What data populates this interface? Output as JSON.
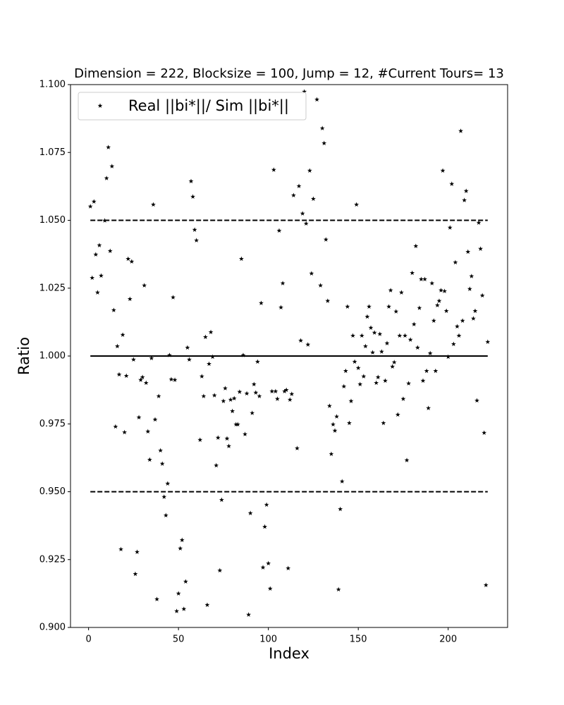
{
  "chart_data": {
    "type": "scatter",
    "title": "Dimension = 222, Blocksize = 100, Jump = 12, #Current Tours= 13",
    "x_label": "Index",
    "y_label": "Ratio",
    "legend": "upper left",
    "series": [
      {
        "name": "Real ||bi*||/ Sim ||bi*||",
        "color": "#000000",
        "marker": "star",
        "x": [
          1,
          2,
          3,
          4,
          5,
          6,
          7,
          9,
          10,
          11,
          12,
          13,
          14,
          15,
          16,
          17,
          18,
          19,
          20,
          21,
          22,
          23,
          24,
          25,
          26,
          27,
          28,
          29,
          30,
          31,
          32,
          33,
          34,
          35,
          36,
          37,
          38,
          39,
          40,
          41,
          42,
          43,
          44,
          45,
          46,
          47,
          48,
          49,
          50,
          51,
          52,
          53,
          54,
          55,
          56,
          57,
          58,
          59,
          60,
          62,
          63,
          64,
          65,
          66,
          67,
          68,
          69,
          70,
          71,
          72,
          73,
          74,
          75,
          76,
          77,
          78,
          79,
          80,
          81,
          82,
          83,
          84,
          85,
          86,
          87,
          88,
          89,
          90,
          91,
          92,
          93,
          94,
          95,
          96,
          97,
          98,
          99,
          100,
          101,
          102,
          103,
          104,
          105,
          106,
          107,
          108,
          109,
          110,
          111,
          112,
          113,
          114,
          116,
          117,
          118,
          119,
          120,
          121,
          122,
          123,
          124,
          125,
          127,
          129,
          130,
          131,
          132,
          133,
          134,
          135,
          136,
          137,
          138,
          139,
          140,
          141,
          142,
          143,
          144,
          145,
          146,
          147,
          148,
          149,
          150,
          151,
          152,
          153,
          154,
          155,
          156,
          157,
          158,
          159,
          160,
          161,
          162,
          163,
          164,
          165,
          166,
          167,
          168,
          169,
          170,
          171,
          172,
          173,
          174,
          175,
          176,
          177,
          178,
          179,
          180,
          181,
          182,
          183,
          184,
          185,
          186,
          187,
          188,
          189,
          190,
          191,
          192,
          193,
          194,
          195,
          196,
          197,
          198,
          199,
          200,
          201,
          202,
          203,
          204,
          205,
          206,
          207,
          208,
          209,
          210,
          211,
          212,
          213,
          214,
          215,
          216,
          217,
          218,
          219,
          220,
          221,
          222
        ],
        "values": [
          1.0551,
          1.0288,
          1.0569,
          1.0374,
          1.0234,
          1.0408,
          1.0296,
          1.0499,
          1.0655,
          1.0769,
          1.0387,
          1.0699,
          1.0169,
          0.974,
          1.0036,
          0.9932,
          0.9288,
          1.0078,
          0.9719,
          0.9927,
          1.0358,
          1.021,
          1.0348,
          0.9987,
          0.9197,
          0.9278,
          0.9774,
          0.9912,
          0.9922,
          1.026,
          0.9901,
          0.9722,
          0.9618,
          0.9992,
          1.0558,
          0.9766,
          0.9104,
          0.9852,
          0.9652,
          0.9603,
          0.9481,
          0.9413,
          0.953,
          1.0003,
          0.9914,
          1.0216,
          0.9912,
          0.906,
          0.9125,
          0.9291,
          0.9322,
          0.9068,
          0.9169,
          1.0031,
          0.9987,
          1.0644,
          1.0587,
          1.0465,
          1.0426,
          0.9691,
          0.9925,
          0.9852,
          1.007,
          0.9083,
          0.9971,
          1.0088,
          0.9997,
          0.9855,
          0.9597,
          0.9699,
          0.921,
          0.947,
          0.9834,
          0.9881,
          0.9696,
          0.9668,
          0.9839,
          0.9797,
          0.9844,
          0.9748,
          0.9748,
          0.9868,
          1.0358,
          1.0003,
          0.9712,
          0.9862,
          0.9047,
          0.9421,
          0.979,
          0.9896,
          0.9865,
          0.9979,
          0.9852,
          1.0195,
          0.9221,
          0.9371,
          0.9452,
          0.9236,
          0.9143,
          0.987,
          1.0686,
          0.987,
          0.9842,
          1.0462,
          1.0179,
          1.0268,
          0.987,
          0.9875,
          0.9218,
          0.9839,
          0.986,
          1.0592,
          0.966,
          1.0626,
          1.0057,
          1.0525,
          1.0974,
          1.0488,
          1.0042,
          1.0683,
          1.0304,
          1.0579,
          1.0945,
          1.026,
          1.0839,
          1.0784,
          1.0429,
          1.0203,
          0.9816,
          0.9639,
          0.9748,
          0.9725,
          0.9777,
          0.914,
          0.9436,
          0.9538,
          0.9888,
          0.9945,
          1.0182,
          0.9753,
          0.9834,
          1.0075,
          0.9979,
          1.0558,
          0.9956,
          0.9896,
          1.0075,
          0.9925,
          1.0036,
          1.0145,
          1.0182,
          1.0104,
          1.0013,
          1.0086,
          0.9901,
          0.9922,
          1.0081,
          1.0016,
          0.9753,
          0.9909,
          1.0047,
          1.0182,
          1.0242,
          0.9961,
          0.9977,
          1.0164,
          0.9784,
          1.0075,
          1.0234,
          0.9842,
          1.0075,
          0.9616,
          0.9899,
          1.006,
          1.0306,
          1.0117,
          1.0405,
          1.0031,
          1.0177,
          1.0283,
          0.9909,
          1.0283,
          0.9945,
          0.9808,
          1.001,
          1.0268,
          1.013,
          0.9945,
          1.0187,
          1.0203,
          1.0242,
          1.0683,
          1.0239,
          1.0166,
          0.9997,
          1.0473,
          1.0634,
          1.0044,
          1.0345,
          1.0109,
          1.0075,
          1.0829,
          1.013,
          1.0574,
          1.0608,
          1.0384,
          1.0247,
          1.0294,
          1.0138,
          1.0166,
          0.9836,
          1.0491,
          1.0395,
          1.0223,
          0.9717,
          0.9156,
          1.0052
        ]
      }
    ],
    "hlines": [
      {
        "y": 1.05,
        "style": "dashed",
        "xmin": 1,
        "xmax": 222
      },
      {
        "y": 1.0,
        "style": "solid",
        "xmin": 1,
        "xmax": 222
      },
      {
        "y": 0.95,
        "style": "dashed",
        "xmin": 1,
        "xmax": 222
      }
    ],
    "xlim": [
      -10.05,
      233.05
    ],
    "xticks": [
      0,
      50,
      100,
      150,
      200
    ],
    "ylim": [
      0.9,
      1.1
    ],
    "yticks": [
      {
        "value": 0.9,
        "label": "0.900"
      },
      0.925,
      {
        "value": 0.95,
        "label": "0.950"
      },
      0.975,
      {
        "value": 1.0,
        "label": "1.000"
      },
      1.025,
      {
        "value": 1.05,
        "label": "1.050"
      },
      1.075,
      {
        "value": 1.1,
        "label": "1.100"
      }
    ]
  }
}
